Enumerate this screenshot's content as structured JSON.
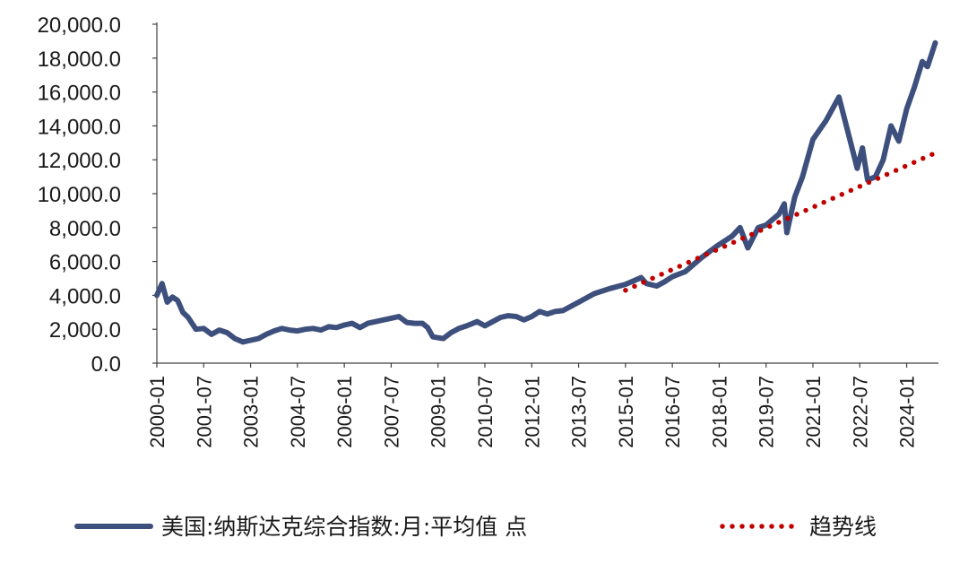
{
  "chart_data": {
    "type": "line",
    "title": "",
    "xlabel": "",
    "ylabel": "",
    "ylim": [
      0,
      20000
    ],
    "yticks": [
      "0.0",
      "2,000.0",
      "4,000.0",
      "6,000.0",
      "8,000.0",
      "10,000.0",
      "12,000.0",
      "14,000.0",
      "16,000.0",
      "18,000.0",
      "20,000.0"
    ],
    "xticks": [
      "2000-01",
      "2001-07",
      "2003-01",
      "2004-07",
      "2006-01",
      "2007-07",
      "2009-01",
      "2010-07",
      "2012-01",
      "2013-07",
      "2015-01",
      "2016-07",
      "2018-01",
      "2019-07",
      "2021-01",
      "2022-07",
      "2024-01"
    ],
    "grid": false,
    "legend_position": "bottom",
    "series": [
      {
        "name": "美国:纳斯达克综合指数:月:平均值 点",
        "style": "solid",
        "color": "#3d4f7c",
        "points": [
          [
            "2000-01",
            4000
          ],
          [
            "2000-03",
            4700
          ],
          [
            "2000-05",
            3600
          ],
          [
            "2000-07",
            3900
          ],
          [
            "2000-09",
            3700
          ],
          [
            "2000-11",
            3000
          ],
          [
            "2001-01",
            2700
          ],
          [
            "2001-04",
            2000
          ],
          [
            "2001-07",
            2050
          ],
          [
            "2001-10",
            1700
          ],
          [
            "2002-01",
            1950
          ],
          [
            "2002-04",
            1800
          ],
          [
            "2002-07",
            1450
          ],
          [
            "2002-10",
            1250
          ],
          [
            "2003-01",
            1350
          ],
          [
            "2003-04",
            1450
          ],
          [
            "2003-07",
            1700
          ],
          [
            "2003-10",
            1900
          ],
          [
            "2004-01",
            2050
          ],
          [
            "2004-04",
            1950
          ],
          [
            "2004-07",
            1900
          ],
          [
            "2004-10",
            2000
          ],
          [
            "2005-01",
            2050
          ],
          [
            "2005-04",
            1950
          ],
          [
            "2005-07",
            2150
          ],
          [
            "2005-10",
            2100
          ],
          [
            "2006-01",
            2250
          ],
          [
            "2006-04",
            2350
          ],
          [
            "2006-07",
            2100
          ],
          [
            "2006-10",
            2350
          ],
          [
            "2007-01",
            2450
          ],
          [
            "2007-04",
            2550
          ],
          [
            "2007-07",
            2650
          ],
          [
            "2007-10",
            2750
          ],
          [
            "2008-01",
            2400
          ],
          [
            "2008-04",
            2350
          ],
          [
            "2008-07",
            2350
          ],
          [
            "2008-09",
            2100
          ],
          [
            "2008-11",
            1550
          ],
          [
            "2009-03",
            1450
          ],
          [
            "2009-06",
            1800
          ],
          [
            "2009-09",
            2050
          ],
          [
            "2009-12",
            2200
          ],
          [
            "2010-04",
            2450
          ],
          [
            "2010-07",
            2200
          ],
          [
            "2010-10",
            2450
          ],
          [
            "2011-01",
            2700
          ],
          [
            "2011-04",
            2800
          ],
          [
            "2011-07",
            2750
          ],
          [
            "2011-10",
            2550
          ],
          [
            "2012-01",
            2750
          ],
          [
            "2012-04",
            3050
          ],
          [
            "2012-07",
            2900
          ],
          [
            "2012-10",
            3050
          ],
          [
            "2013-01",
            3100
          ],
          [
            "2013-07",
            3600
          ],
          [
            "2014-01",
            4100
          ],
          [
            "2014-07",
            4400
          ],
          [
            "2015-01",
            4650
          ],
          [
            "2015-07",
            5050
          ],
          [
            "2015-09",
            4700
          ],
          [
            "2016-01",
            4550
          ],
          [
            "2016-04",
            4800
          ],
          [
            "2016-07",
            5100
          ],
          [
            "2016-12",
            5400
          ],
          [
            "2017-06",
            6200
          ],
          [
            "2017-12",
            6900
          ],
          [
            "2018-06",
            7500
          ],
          [
            "2018-09",
            8000
          ],
          [
            "2018-12",
            6800
          ],
          [
            "2019-04",
            8000
          ],
          [
            "2019-07",
            8150
          ],
          [
            "2019-12",
            8800
          ],
          [
            "2020-02",
            9400
          ],
          [
            "2020-03",
            7700
          ],
          [
            "2020-06",
            9800
          ],
          [
            "2020-09",
            11000
          ],
          [
            "2021-01",
            13200
          ],
          [
            "2021-06",
            14300
          ],
          [
            "2021-11",
            15700
          ],
          [
            "2022-03",
            13300
          ],
          [
            "2022-06",
            11500
          ],
          [
            "2022-08",
            12700
          ],
          [
            "2022-10",
            10800
          ],
          [
            "2023-01",
            11000
          ],
          [
            "2023-04",
            12000
          ],
          [
            "2023-07",
            14000
          ],
          [
            "2023-10",
            13100
          ],
          [
            "2024-01",
            15000
          ],
          [
            "2024-04",
            16300
          ],
          [
            "2024-07",
            17800
          ],
          [
            "2024-09",
            17500
          ],
          [
            "2024-12",
            18900
          ]
        ]
      },
      {
        "name": "趋势线",
        "style": "dotted",
        "color": "#c00000",
        "points": [
          [
            "2015-01",
            4300
          ],
          [
            "2024-12",
            12400
          ]
        ]
      }
    ]
  }
}
